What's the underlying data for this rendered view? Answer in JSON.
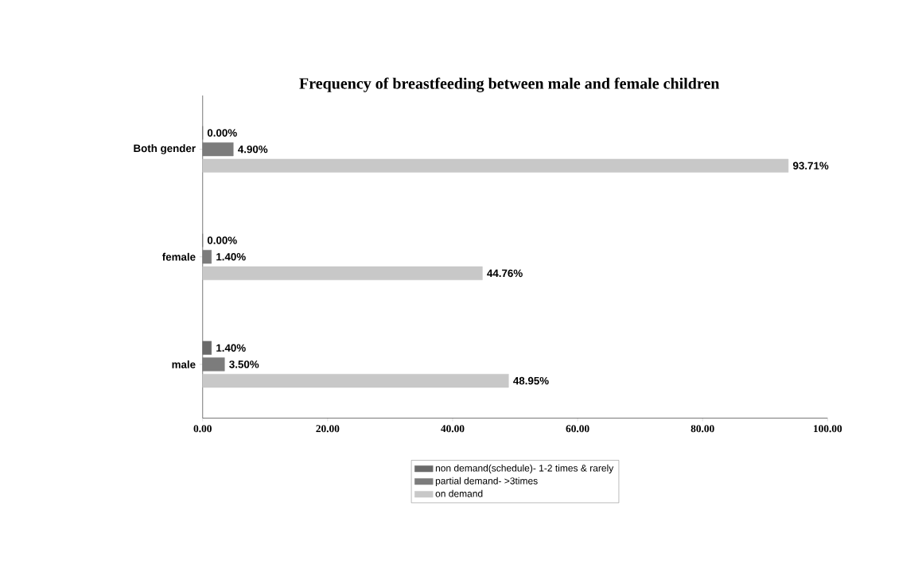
{
  "chart_data": {
    "type": "bar",
    "orientation": "horizontal",
    "title": "Frequency of breastfeeding between male and female children",
    "categories": [
      "Both gender",
      "female",
      "male"
    ],
    "series": [
      {
        "name": "non demand(schedule)- 1-2 times & rarely",
        "color": "#6a6a6a",
        "values": [
          0,
          0,
          1.4
        ],
        "value_labels": [
          "0.00%",
          "0.00%",
          "1.40%"
        ]
      },
      {
        "name": "partial demand- >3times",
        "color": "#7c7c7c",
        "values": [
          4.9,
          1.4,
          3.5
        ],
        "value_labels": [
          "4.90%",
          "1.40%",
          "3.50%"
        ]
      },
      {
        "name": "on demand",
        "color": "#c8c8c8",
        "values": [
          93.71,
          44.76,
          48.95
        ],
        "value_labels": [
          "93.71%",
          "44.76%",
          "48.95%"
        ]
      }
    ],
    "xlim": [
      0,
      100
    ],
    "xticks": [
      {
        "value": 0,
        "label": "0.00"
      },
      {
        "value": 20,
        "label": "20.00"
      },
      {
        "value": 40,
        "label": "40.00"
      },
      {
        "value": 60,
        "label": "60.00"
      },
      {
        "value": 80,
        "label": "80.00"
      },
      {
        "value": 100,
        "label": "100.00"
      }
    ],
    "legend": "bottom",
    "grid": false
  }
}
